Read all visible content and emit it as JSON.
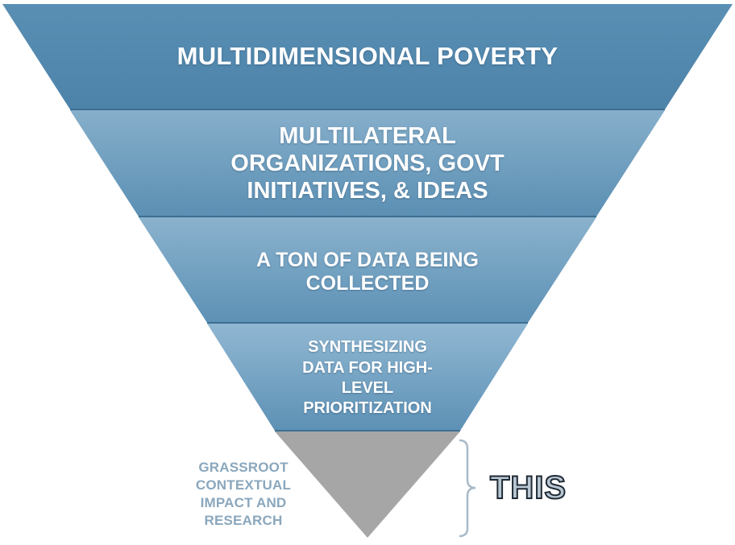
{
  "tiers": [
    {
      "label": "MULTIDIMENSIONAL POVERTY"
    },
    {
      "label": "MULTILATERAL ORGANIZATIONS, GOVT INITIATIVES, & IDEAS"
    },
    {
      "label": "A TON OF DATA BEING COLLECTED"
    },
    {
      "label": "SYNTHESIZING DATA FOR HIGH-LEVEL PRIORITIZATION"
    }
  ],
  "bottom_tier": {
    "side_label": "GRASSROOT CONTEXTUAL IMPACT AND RESEARCH"
  },
  "callout": {
    "text": "THIS"
  },
  "colors": {
    "tier_top": "#4f86ac",
    "tier_bottom_light": "#8fb6d1",
    "separator": "#3e6f92",
    "bottom_tier": "#a6a6a6",
    "side_label": "#8aa7bd",
    "bracket": "#a9bac8",
    "callout_fill": "#b9c7d2",
    "callout_outline": "#1e2a35"
  }
}
